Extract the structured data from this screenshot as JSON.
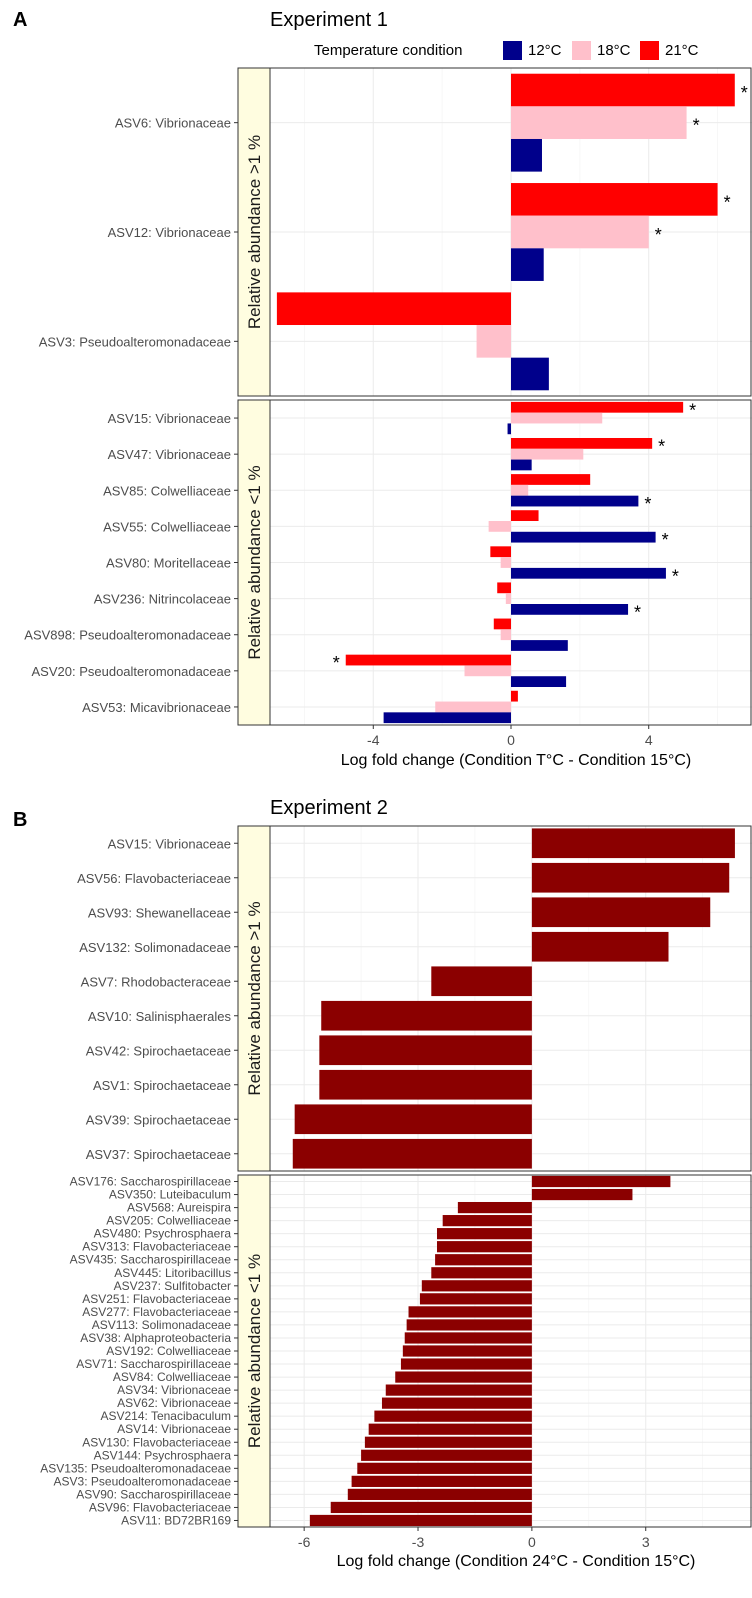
{
  "chart_data": [
    {
      "panel_label": "A",
      "type": "bar",
      "orientation": "horizontal",
      "title": "Experiment 1",
      "xlabel": "Log fold change (Condition T°C - Condition 15°C)",
      "xlim": [
        -7,
        7
      ],
      "xticks": [
        -4,
        0,
        4
      ],
      "xticklabels": [
        "-4",
        "0",
        "4"
      ],
      "grid": true,
      "legend": {
        "position": "top-right",
        "title": "Temperature condition",
        "entries": [
          {
            "name": "12°C",
            "color": "#00008b"
          },
          {
            "name": "18°C",
            "color": "#ffc0cb"
          },
          {
            "name": "21°C",
            "color": "#ff0000"
          }
        ]
      },
      "facets": [
        {
          "strip": "Relative abundance >1 %",
          "categories": [
            "ASV6: Vibrionaceae",
            "ASV12: Vibrionaceae",
            "ASV3: Pseudoalteromonadaceae"
          ],
          "series": [
            {
              "name": "12°C",
              "values": [
                0.9,
                0.95,
                1.1
              ],
              "significant": [
                false,
                false,
                false
              ]
            },
            {
              "name": "18°C",
              "values": [
                5.1,
                4.0,
                -1.0
              ],
              "significant": [
                true,
                true,
                false
              ]
            },
            {
              "name": "21°C",
              "values": [
                6.5,
                6.0,
                -6.8
              ],
              "significant": [
                true,
                true,
                true
              ]
            }
          ],
          "star": "*"
        },
        {
          "strip": "Relative abundance <1 %",
          "categories": [
            "ASV15: Vibrionaceae",
            "ASV47: Vibrionaceae",
            "ASV85: Colwelliaceae",
            "ASV55: Colwelliaceae",
            "ASV80: Moritellaceae",
            "ASV236: Nitrincolaceae",
            "ASV898: Pseudoalteromonadaceae",
            "ASV20: Pseudoalteromonadaceae",
            "ASV53: Micavibrionaceae"
          ],
          "series": [
            {
              "name": "12°C",
              "values": [
                -0.1,
                0.6,
                3.7,
                4.2,
                4.5,
                3.4,
                1.65,
                1.6,
                -3.7
              ],
              "significant": [
                false,
                false,
                true,
                true,
                true,
                true,
                false,
                false,
                false
              ]
            },
            {
              "name": "18°C",
              "values": [
                2.65,
                2.1,
                0.5,
                -0.65,
                -0.3,
                -0.15,
                -0.3,
                -1.35,
                -2.2
              ],
              "significant": [
                false,
                false,
                false,
                false,
                false,
                false,
                false,
                false,
                false
              ]
            },
            {
              "name": "21°C",
              "values": [
                5.0,
                4.1,
                2.3,
                0.8,
                -0.6,
                -0.4,
                -0.5,
                -4.8,
                0.2
              ],
              "significant": [
                true,
                true,
                false,
                false,
                false,
                false,
                false,
                true,
                false
              ]
            }
          ],
          "star": "*"
        }
      ]
    },
    {
      "panel_label": "B",
      "type": "bar",
      "orientation": "horizontal",
      "title": "Experiment 2",
      "xlabel": "Log fold change (Condition 24°C - Condition 15°C)",
      "xlim": [
        -6.9,
        5.8
      ],
      "xticks": [
        -6,
        -3,
        0,
        3
      ],
      "xticklabels": [
        "-6",
        "-3",
        "0",
        "3"
      ],
      "grid": true,
      "bar_color": "#8b0000",
      "facets": [
        {
          "strip": "Relative abundance >1 %",
          "categories": [
            "ASV15: Vibrionaceae",
            "ASV56: Flavobacteriaceae",
            "ASV93: Shewanellaceae",
            "ASV132: Solimonadaceae",
            "ASV7: Rhodobacteraceae",
            "ASV10: Salinisphaerales",
            "ASV42: Spirochaetaceae",
            "ASV1: Spirochaetaceae",
            "ASV39: Spirochaetaceae",
            "ASV37: Spirochaetaceae"
          ],
          "values": [
            5.35,
            5.2,
            4.7,
            3.6,
            -2.65,
            -5.55,
            -5.6,
            -5.6,
            -6.25,
            -6.3
          ]
        },
        {
          "strip": "Relative abundance <1 %",
          "categories": [
            "ASV176: Saccharospirillaceae",
            "ASV350: Luteibaculum",
            "ASV568: Aureispira",
            "ASV205: Colwelliaceae",
            "ASV480: Psychrosphaera",
            "ASV313: Flavobacteriaceae",
            "ASV435: Saccharospirillaceae",
            "ASV445: Litoribacillus",
            "ASV237: Sulfitobacter",
            "ASV251: Flavobacteriaceae",
            "ASV277: Flavobacteriaceae",
            "ASV113: Solimonadaceae",
            "ASV38: Alphaproteobacteria",
            "ASV192: Colwelliaceae",
            "ASV71: Saccharospirillaceae",
            "ASV84: Colwelliaceae",
            "ASV34: Vibrionaceae",
            "ASV62: Vibrionaceae",
            "ASV214: Tenacibaculum",
            "ASV14: Vibrionaceae",
            "ASV130: Flavobacteriaceae",
            "ASV144: Psychrosphaera",
            "ASV135: Pseudoalteromonadaceae",
            "ASV3: Pseudoalteromonadaceae",
            "ASV90: Saccharospirillaceae",
            "ASV96: Flavobacteriaceae",
            "ASV11: BD72BR169"
          ],
          "values": [
            3.65,
            2.65,
            -1.95,
            -2.35,
            -2.5,
            -2.5,
            -2.55,
            -2.65,
            -2.9,
            -2.95,
            -3.25,
            -3.3,
            -3.35,
            -3.4,
            -3.45,
            -3.6,
            -3.85,
            -3.95,
            -4.15,
            -4.3,
            -4.4,
            -4.5,
            -4.6,
            -4.75,
            -4.85,
            -5.3,
            -5.85
          ]
        }
      ]
    }
  ]
}
